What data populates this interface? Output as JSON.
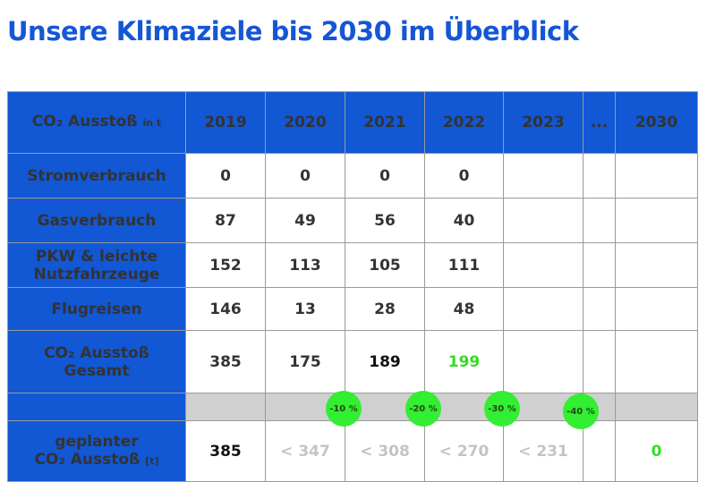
{
  "title": "Unsere Klimaziele bis 2030 im Überblick",
  "header": {
    "label_main": "CO₂ Ausstoß",
    "label_unit": "in t",
    "years": [
      "2019",
      "2020",
      "2021",
      "2022",
      "2023",
      "...",
      "2030"
    ]
  },
  "rows": [
    {
      "label": "Stromverbrauch",
      "values": [
        "0",
        "0",
        "0",
        "0",
        "",
        "",
        ""
      ]
    },
    {
      "label": "Gasverbrauch",
      "values": [
        "87",
        "49",
        "56",
        "40",
        "",
        "",
        ""
      ]
    },
    {
      "label_line1": "PKW & leichte",
      "label_line2": "Nutzfahrzeuge",
      "values": [
        "152",
        "113",
        "105",
        "111",
        "",
        "",
        ""
      ]
    },
    {
      "label": "Flugreisen",
      "values": [
        "146",
        "13",
        "28",
        "48",
        "",
        "",
        ""
      ]
    }
  ],
  "total": {
    "label_line1": "CO₂ Ausstoß",
    "label_line2": "Gesamt",
    "values": [
      "385",
      "175",
      "189",
      "199",
      "",
      "",
      ""
    ]
  },
  "reduction_badges": [
    "-10 %",
    "-20 %",
    "-30 %",
    "-40 %"
  ],
  "planned": {
    "label_line1": "geplanter",
    "label_line2": "CO₂ Ausstoß",
    "label_unit": "[t]",
    "values": [
      "385",
      "< 347",
      "< 308",
      "< 270",
      "< 231",
      "",
      "0"
    ]
  },
  "colors": {
    "blue": "#1257d3",
    "green": "#33dd22",
    "grey_band": "#d0d0d0"
  }
}
